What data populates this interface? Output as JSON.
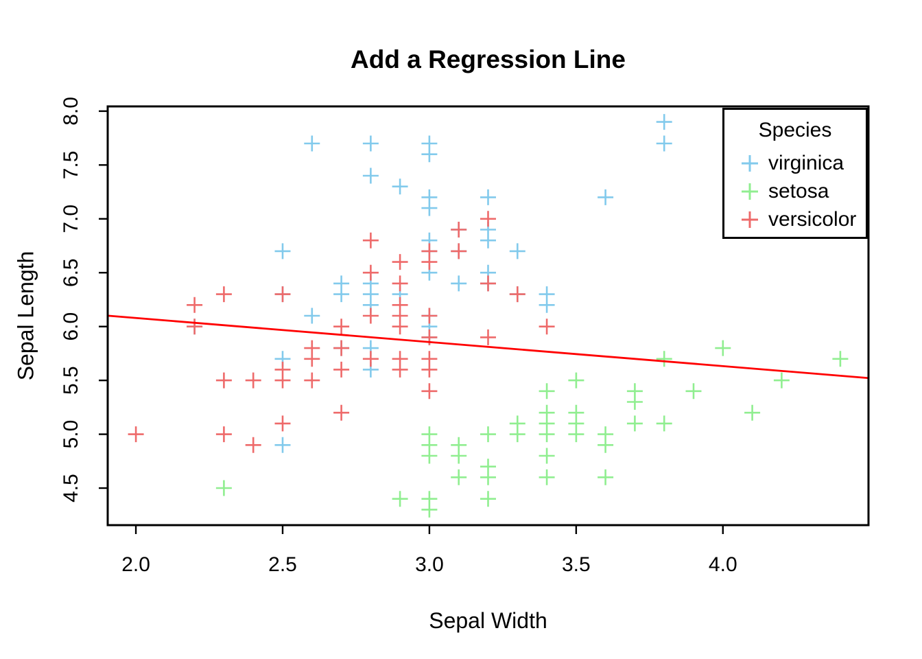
{
  "page": {
    "background": "#ffffff"
  },
  "chart_data": {
    "type": "scatter",
    "title": "Add a Regression Line",
    "xlabel": "Sepal Width",
    "ylabel": "Sepal Length",
    "xlim": [
      1.904,
      4.496
    ],
    "ylim": [
      4.156,
      8.044
    ],
    "x_ticks": {
      "values": [
        2.0,
        2.5,
        3.0,
        3.5,
        4.0
      ],
      "labels": [
        "2.0",
        "2.5",
        "3.0",
        "3.5",
        "4.0"
      ]
    },
    "y_ticks": {
      "values": [
        4.5,
        5.0,
        5.5,
        6.0,
        6.5,
        7.0,
        7.5,
        8.0
      ],
      "labels": [
        "4.5",
        "5.0",
        "5.5",
        "6.0",
        "6.5",
        "7.0",
        "7.5",
        "8.0"
      ]
    },
    "grid": false,
    "marker": "+",
    "axis_color": "#000000",
    "text_color": "#000000",
    "legend": {
      "title": "Species",
      "position": "top-right",
      "entries": [
        {
          "label": "virginica",
          "color": "#82CAEC"
        },
        {
          "label": "setosa",
          "color": "#90EE90"
        },
        {
          "label": "versicolor",
          "color": "#EE6A6A"
        }
      ]
    },
    "series": [
      {
        "name": "virginica",
        "color": "#82CAEC",
        "points": [
          [
            3.3,
            6.3
          ],
          [
            2.7,
            5.8
          ],
          [
            3.0,
            7.1
          ],
          [
            2.9,
            6.3
          ],
          [
            3.0,
            6.5
          ],
          [
            3.0,
            7.6
          ],
          [
            2.5,
            4.9
          ],
          [
            2.9,
            7.3
          ],
          [
            2.5,
            6.7
          ],
          [
            3.6,
            7.2
          ],
          [
            3.2,
            6.5
          ],
          [
            2.7,
            6.4
          ],
          [
            3.0,
            6.8
          ],
          [
            2.5,
            5.7
          ],
          [
            2.8,
            5.8
          ],
          [
            3.2,
            6.4
          ],
          [
            3.0,
            6.5
          ],
          [
            3.8,
            7.7
          ],
          [
            2.6,
            7.7
          ],
          [
            2.2,
            6.0
          ],
          [
            3.2,
            6.9
          ],
          [
            2.8,
            5.6
          ],
          [
            2.8,
            7.7
          ],
          [
            2.7,
            6.3
          ],
          [
            3.3,
            6.7
          ],
          [
            3.2,
            7.2
          ],
          [
            2.8,
            6.2
          ],
          [
            3.0,
            6.1
          ],
          [
            2.8,
            6.4
          ],
          [
            3.0,
            7.2
          ],
          [
            2.8,
            7.4
          ],
          [
            3.8,
            7.9
          ],
          [
            2.8,
            6.4
          ],
          [
            2.8,
            6.3
          ],
          [
            2.6,
            6.1
          ],
          [
            3.0,
            7.7
          ],
          [
            3.4,
            6.3
          ],
          [
            3.1,
            6.4
          ],
          [
            3.0,
            6.0
          ],
          [
            3.1,
            6.9
          ],
          [
            3.1,
            6.7
          ],
          [
            3.1,
            6.9
          ],
          [
            2.7,
            5.8
          ],
          [
            3.2,
            6.8
          ],
          [
            3.3,
            6.7
          ],
          [
            3.0,
            6.7
          ],
          [
            2.5,
            6.3
          ],
          [
            3.0,
            6.5
          ],
          [
            3.4,
            6.2
          ],
          [
            3.0,
            5.9
          ]
        ]
      },
      {
        "name": "setosa",
        "color": "#90EE90",
        "points": [
          [
            3.5,
            5.1
          ],
          [
            3.0,
            4.9
          ],
          [
            3.2,
            4.7
          ],
          [
            3.1,
            4.6
          ],
          [
            3.6,
            5.0
          ],
          [
            3.9,
            5.4
          ],
          [
            3.4,
            4.6
          ],
          [
            3.4,
            5.0
          ],
          [
            2.9,
            4.4
          ],
          [
            3.1,
            4.9
          ],
          [
            3.7,
            5.4
          ],
          [
            3.4,
            4.8
          ],
          [
            3.0,
            4.8
          ],
          [
            3.0,
            4.3
          ],
          [
            4.0,
            5.8
          ],
          [
            4.4,
            5.7
          ],
          [
            3.9,
            5.4
          ],
          [
            3.5,
            5.1
          ],
          [
            3.8,
            5.7
          ],
          [
            3.8,
            5.1
          ],
          [
            3.4,
            5.4
          ],
          [
            3.7,
            5.1
          ],
          [
            3.6,
            4.6
          ],
          [
            3.3,
            5.1
          ],
          [
            3.4,
            4.8
          ],
          [
            3.0,
            5.0
          ],
          [
            3.4,
            5.0
          ],
          [
            3.5,
            5.2
          ],
          [
            3.4,
            5.2
          ],
          [
            3.2,
            4.7
          ],
          [
            3.1,
            4.8
          ],
          [
            3.4,
            5.4
          ],
          [
            4.1,
            5.2
          ],
          [
            4.2,
            5.5
          ],
          [
            3.1,
            4.9
          ],
          [
            3.2,
            5.0
          ],
          [
            3.5,
            5.5
          ],
          [
            3.6,
            4.9
          ],
          [
            3.0,
            4.4
          ],
          [
            3.4,
            5.1
          ],
          [
            3.5,
            5.0
          ],
          [
            2.3,
            4.5
          ],
          [
            3.2,
            4.4
          ],
          [
            3.5,
            5.0
          ],
          [
            3.8,
            5.1
          ],
          [
            3.0,
            4.8
          ],
          [
            3.8,
            5.1
          ],
          [
            3.2,
            4.6
          ],
          [
            3.7,
            5.3
          ],
          [
            3.3,
            5.0
          ]
        ]
      },
      {
        "name": "versicolor",
        "color": "#EE6A6A",
        "points": [
          [
            3.2,
            7.0
          ],
          [
            3.2,
            6.4
          ],
          [
            3.1,
            6.9
          ],
          [
            2.3,
            5.5
          ],
          [
            2.8,
            6.5
          ],
          [
            2.8,
            5.7
          ],
          [
            3.3,
            6.3
          ],
          [
            2.4,
            4.9
          ],
          [
            2.9,
            6.6
          ],
          [
            2.7,
            5.2
          ],
          [
            2.0,
            5.0
          ],
          [
            3.0,
            5.9
          ],
          [
            2.2,
            6.0
          ],
          [
            2.9,
            6.1
          ],
          [
            2.9,
            5.6
          ],
          [
            3.1,
            6.7
          ],
          [
            3.0,
            5.6
          ],
          [
            2.7,
            5.8
          ],
          [
            2.2,
            6.2
          ],
          [
            2.5,
            5.6
          ],
          [
            3.2,
            5.9
          ],
          [
            2.8,
            6.1
          ],
          [
            2.5,
            6.3
          ],
          [
            2.8,
            6.1
          ],
          [
            2.9,
            6.4
          ],
          [
            3.0,
            6.6
          ],
          [
            2.8,
            6.8
          ],
          [
            3.0,
            6.7
          ],
          [
            2.9,
            6.0
          ],
          [
            2.6,
            5.7
          ],
          [
            2.4,
            5.5
          ],
          [
            2.4,
            5.5
          ],
          [
            2.7,
            5.8
          ],
          [
            2.7,
            6.0
          ],
          [
            3.0,
            5.4
          ],
          [
            3.4,
            6.0
          ],
          [
            3.1,
            6.7
          ],
          [
            2.3,
            6.3
          ],
          [
            3.0,
            5.6
          ],
          [
            2.5,
            5.5
          ],
          [
            2.6,
            5.5
          ],
          [
            3.0,
            6.1
          ],
          [
            2.6,
            5.8
          ],
          [
            2.3,
            5.0
          ],
          [
            2.7,
            5.6
          ],
          [
            3.0,
            5.7
          ],
          [
            2.9,
            5.7
          ],
          [
            2.9,
            6.2
          ],
          [
            2.5,
            5.1
          ],
          [
            2.8,
            5.7
          ]
        ]
      }
    ],
    "regression_line": {
      "color": "#FF0000",
      "slope": -0.2234,
      "intercept": 6.5262
    }
  }
}
